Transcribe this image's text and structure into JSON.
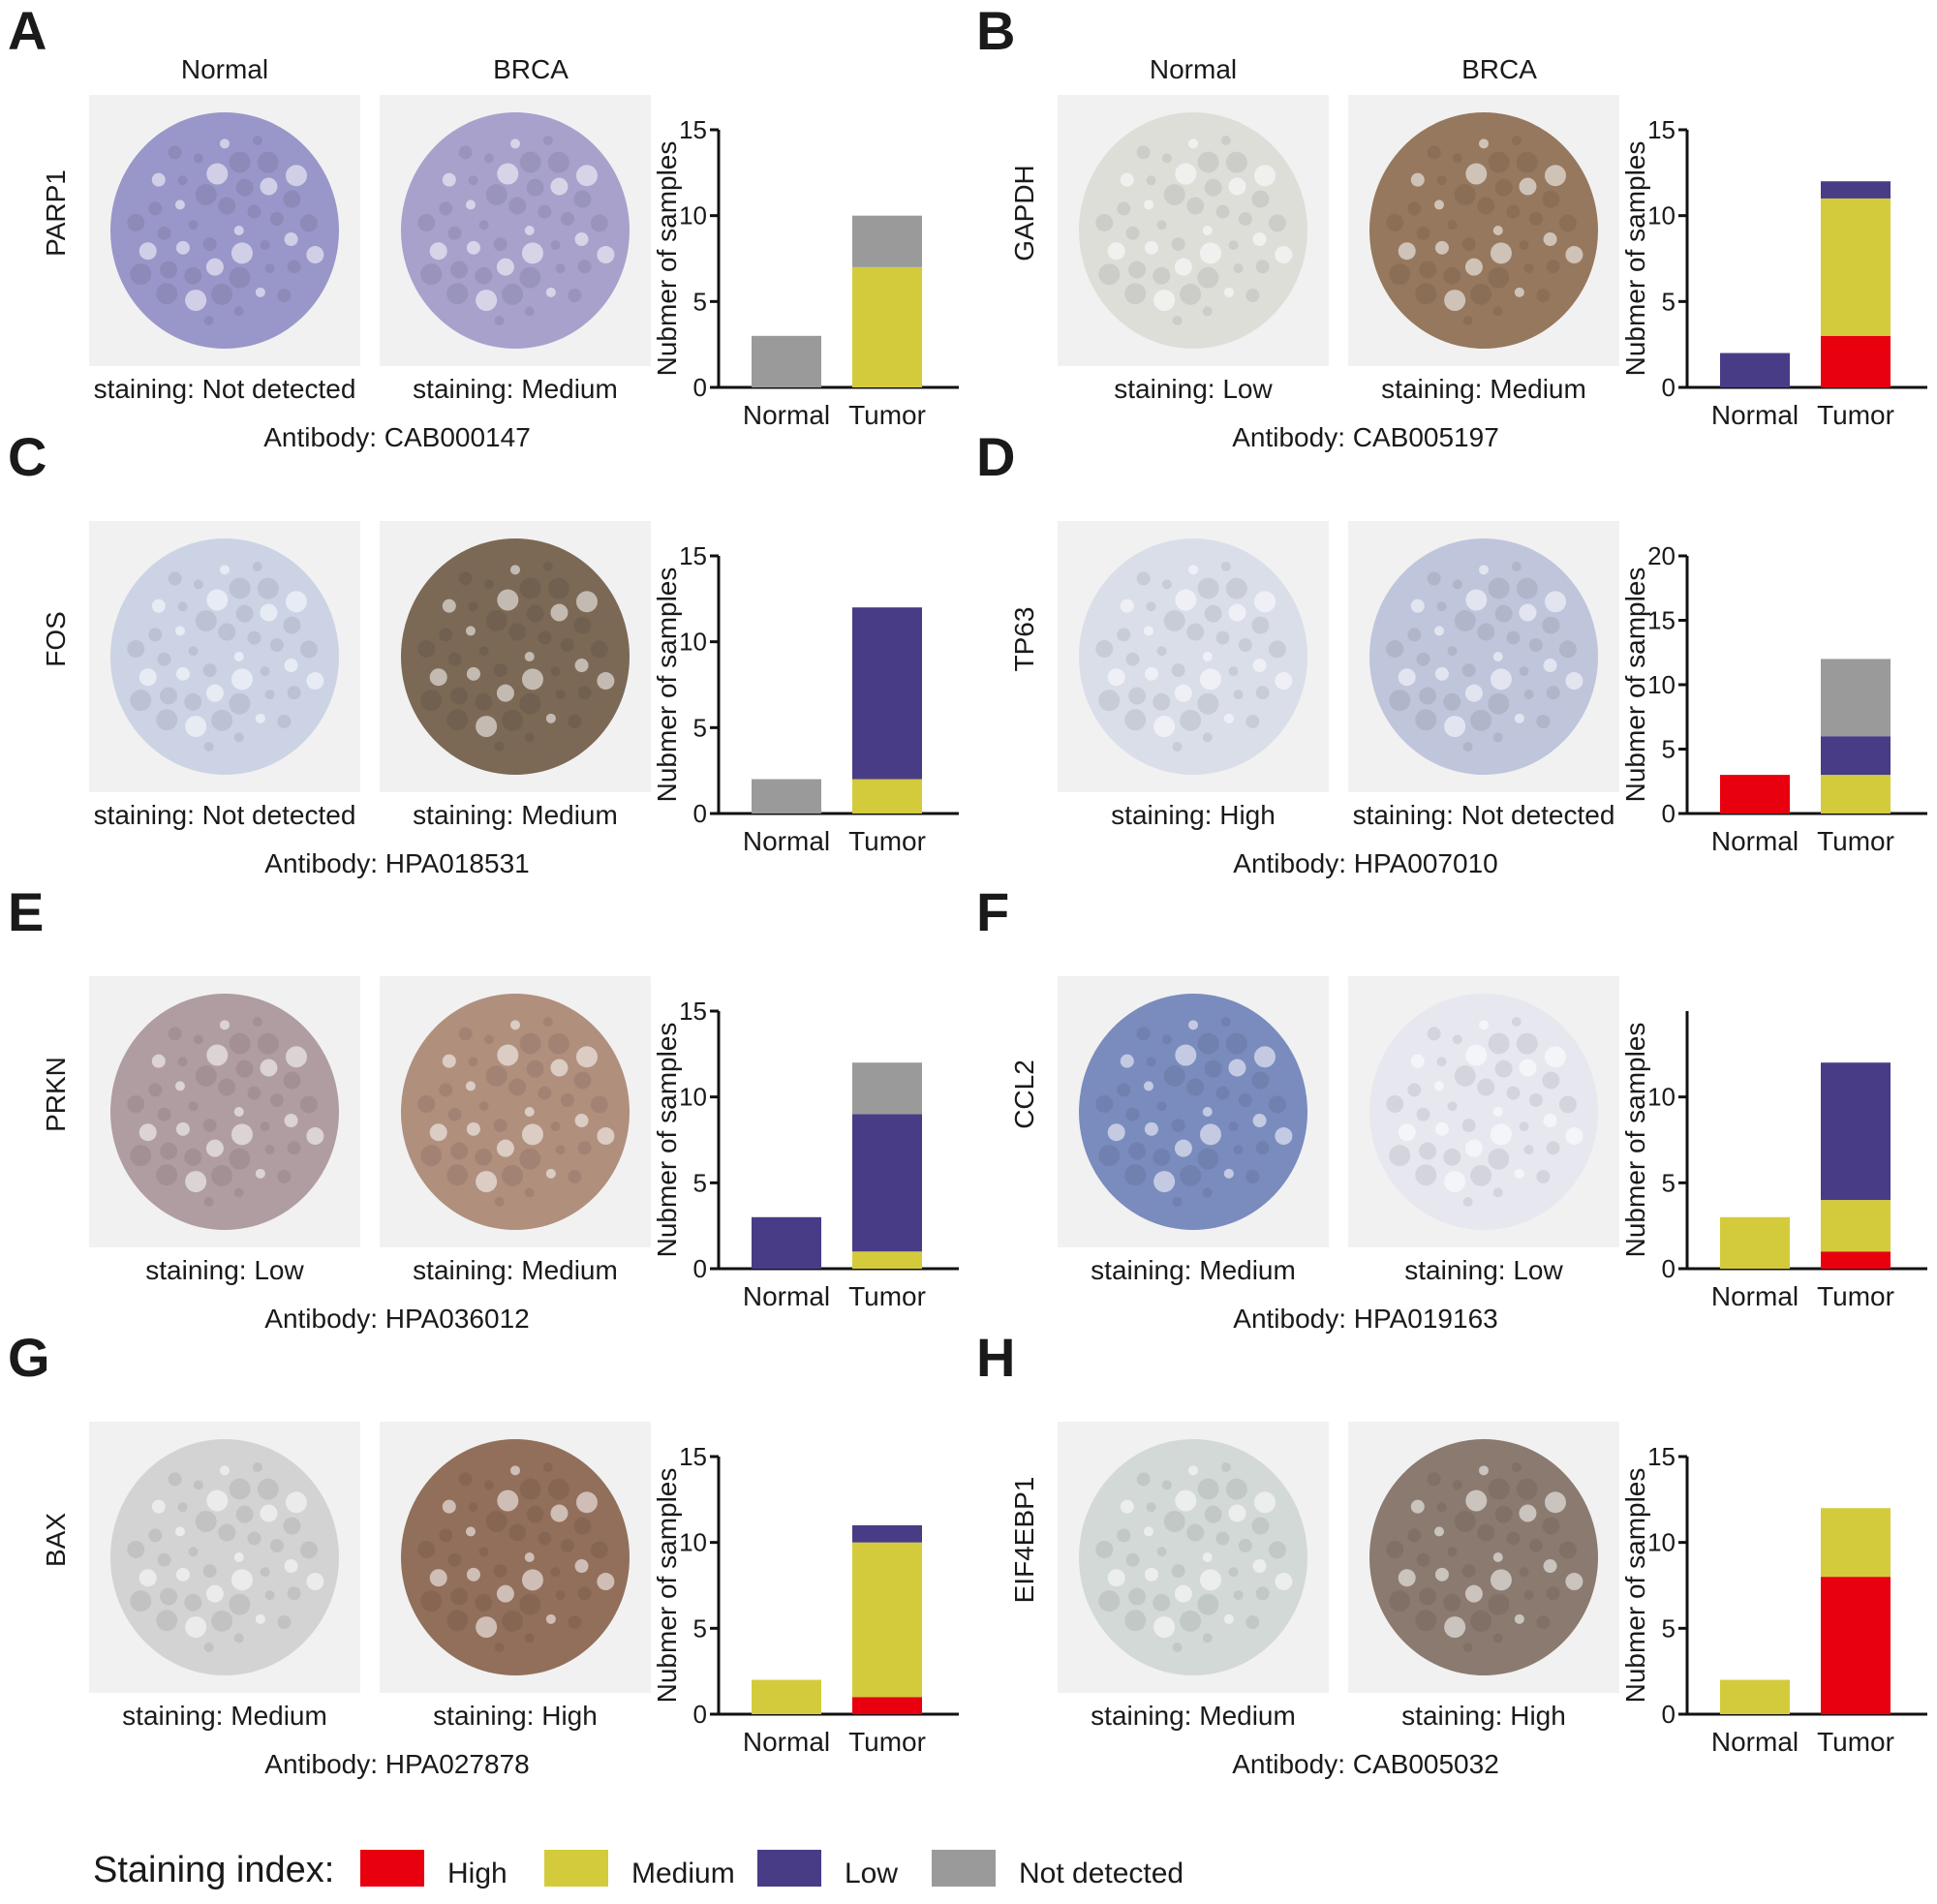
{
  "legend": {
    "title": "Staining index:",
    "items": [
      {
        "label": "High",
        "color": "#e8000f"
      },
      {
        "label": "Medium",
        "color": "#d4cb3c"
      },
      {
        "label": "Low",
        "color": "#493c86"
      },
      {
        "label": "Not detected",
        "color": "#9a9a9a"
      }
    ]
  },
  "panels": [
    {
      "letter": "A",
      "gene": "PARP1",
      "header_left": "Normal",
      "header_right": "BRCA",
      "stain_left": "staining: Not detected",
      "stain_right": "staining: Medium",
      "antibody": "Antibody: CAB000147"
    },
    {
      "letter": "B",
      "gene": "GAPDH",
      "header_left": "Normal",
      "header_right": "BRCA",
      "stain_left": "staining: Low",
      "stain_right": "staining: Medium",
      "antibody": "Antibody: CAB005197"
    },
    {
      "letter": "C",
      "gene": "FOS",
      "header_left": "",
      "header_right": "",
      "stain_left": "staining: Not detected",
      "stain_right": "staining: Medium",
      "antibody": "Antibody: HPA018531"
    },
    {
      "letter": "D",
      "gene": "TP63",
      "header_left": "",
      "header_right": "",
      "stain_left": "staining: High",
      "stain_right": "staining: Not detected",
      "antibody": "Antibody: HPA007010"
    },
    {
      "letter": "E",
      "gene": "PRKN",
      "header_left": "",
      "header_right": "",
      "stain_left": "staining: Low",
      "stain_right": "staining: Medium",
      "antibody": "Antibody: HPA036012"
    },
    {
      "letter": "F",
      "gene": "CCL2",
      "header_left": "",
      "header_right": "",
      "stain_left": "staining: Medium",
      "stain_right": "staining: Low",
      "antibody": "Antibody: HPA019163"
    },
    {
      "letter": "G",
      "gene": "BAX",
      "header_left": "",
      "header_right": "",
      "stain_left": "staining: Medium",
      "stain_right": "staining: High",
      "antibody": "Antibody: HPA027878"
    },
    {
      "letter": "H",
      "gene": "EIF4EBP1",
      "header_left": "",
      "header_right": "",
      "stain_left": "staining: Medium",
      "stain_right": "staining: High",
      "antibody": "Antibody: CAB005032"
    }
  ],
  "chart_data": [
    {
      "type": "bar",
      "stacked": true,
      "ylabel": "Nubmer of samples",
      "ylim": [
        0,
        15
      ],
      "yticks": [
        0,
        5,
        10,
        15
      ],
      "categories": [
        "Normal",
        "Tumor"
      ],
      "series": [
        {
          "name": "High",
          "values": [
            0,
            0
          ]
        },
        {
          "name": "Medium",
          "values": [
            0,
            7
          ]
        },
        {
          "name": "Low",
          "values": [
            0,
            0
          ]
        },
        {
          "name": "Not detected",
          "values": [
            3,
            3
          ]
        }
      ]
    },
    {
      "type": "bar",
      "stacked": true,
      "ylabel": "Nubmer of samples",
      "ylim": [
        0,
        15
      ],
      "yticks": [
        0,
        5,
        10,
        15
      ],
      "categories": [
        "Normal",
        "Tumor"
      ],
      "series": [
        {
          "name": "High",
          "values": [
            0,
            3
          ]
        },
        {
          "name": "Medium",
          "values": [
            0,
            8
          ]
        },
        {
          "name": "Low",
          "values": [
            2,
            1
          ]
        },
        {
          "name": "Not detected",
          "values": [
            0,
            0
          ]
        }
      ]
    },
    {
      "type": "bar",
      "stacked": true,
      "ylabel": "Nubmer of samples",
      "ylim": [
        0,
        15
      ],
      "yticks": [
        0,
        5,
        10,
        15
      ],
      "categories": [
        "Normal",
        "Tumor"
      ],
      "series": [
        {
          "name": "High",
          "values": [
            0,
            0
          ]
        },
        {
          "name": "Medium",
          "values": [
            0,
            2
          ]
        },
        {
          "name": "Low",
          "values": [
            0,
            10
          ]
        },
        {
          "name": "Not detected",
          "values": [
            2,
            0
          ]
        }
      ]
    },
    {
      "type": "bar",
      "stacked": true,
      "ylabel": "Nubmer of samples",
      "ylim": [
        0,
        20
      ],
      "yticks": [
        0,
        5,
        10,
        15,
        20
      ],
      "categories": [
        "Normal",
        "Tumor"
      ],
      "series": [
        {
          "name": "High",
          "values": [
            3,
            0
          ]
        },
        {
          "name": "Medium",
          "values": [
            0,
            3
          ]
        },
        {
          "name": "Low",
          "values": [
            0,
            3
          ]
        },
        {
          "name": "Not detected",
          "values": [
            0,
            6
          ]
        }
      ]
    },
    {
      "type": "bar",
      "stacked": true,
      "ylabel": "Nubmer of samples",
      "ylim": [
        0,
        15
      ],
      "yticks": [
        0,
        5,
        10,
        15
      ],
      "categories": [
        "Normal",
        "Tumor"
      ],
      "series": [
        {
          "name": "High",
          "values": [
            0,
            0
          ]
        },
        {
          "name": "Medium",
          "values": [
            0,
            1
          ]
        },
        {
          "name": "Low",
          "values": [
            3,
            8
          ]
        },
        {
          "name": "Not detected",
          "values": [
            0,
            3
          ]
        }
      ]
    },
    {
      "type": "bar",
      "stacked": true,
      "ylabel": "Nubmer of samples",
      "ylim": [
        0,
        15
      ],
      "yticks": [
        0,
        5,
        10
      ],
      "categories": [
        "Normal",
        "Tumor"
      ],
      "series": [
        {
          "name": "High",
          "values": [
            0,
            1
          ]
        },
        {
          "name": "Medium",
          "values": [
            3,
            3
          ]
        },
        {
          "name": "Low",
          "values": [
            0,
            8
          ]
        },
        {
          "name": "Not detected",
          "values": [
            0,
            0
          ]
        }
      ]
    },
    {
      "type": "bar",
      "stacked": true,
      "ylabel": "Nubmer of samples",
      "ylim": [
        0,
        15
      ],
      "yticks": [
        0,
        5,
        10,
        15
      ],
      "categories": [
        "Normal",
        "Tumor"
      ],
      "series": [
        {
          "name": "High",
          "values": [
            0,
            1
          ]
        },
        {
          "name": "Medium",
          "values": [
            2,
            9
          ]
        },
        {
          "name": "Low",
          "values": [
            0,
            1
          ]
        },
        {
          "name": "Not detected",
          "values": [
            0,
            0
          ]
        }
      ]
    },
    {
      "type": "bar",
      "stacked": true,
      "ylabel": "Nubmer of samples",
      "ylim": [
        0,
        15
      ],
      "yticks": [
        0,
        5,
        10,
        15
      ],
      "categories": [
        "Normal",
        "Tumor"
      ],
      "series": [
        {
          "name": "High",
          "values": [
            0,
            8
          ]
        },
        {
          "name": "Medium",
          "values": [
            2,
            4
          ]
        },
        {
          "name": "Low",
          "values": [
            0,
            0
          ]
        },
        {
          "name": "Not detected",
          "values": [
            0,
            0
          ]
        }
      ]
    }
  ],
  "tissue_colors": [
    [
      "#8f8cc4",
      "#9e98c8"
    ],
    [
      "#dcdcd6",
      "#8c6a4e"
    ],
    [
      "#c6cfe3",
      "#6e5a45"
    ],
    [
      "#d7dbe8",
      "#b9c0d8"
    ],
    [
      "#a89398",
      "#a88470"
    ],
    [
      "#6d80b8",
      "#e6e7ee"
    ],
    [
      "#cfcfcf",
      "#87614a"
    ],
    [
      "#cfd6d4",
      "#7f6d60"
    ]
  ]
}
